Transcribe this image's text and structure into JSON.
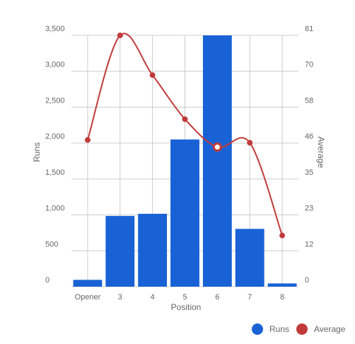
{
  "chart_data": {
    "type": "bar+line",
    "categories": [
      "Opener",
      "3",
      "4",
      "5",
      "6",
      "7",
      "8"
    ],
    "series": [
      {
        "name": "Runs",
        "type": "bar",
        "axis": "left",
        "color": "#1862d6",
        "values": [
          95,
          985,
          1015,
          2050,
          3560,
          805,
          45
        ]
      },
      {
        "name": "Average",
        "type": "line",
        "axis": "right",
        "color": "#c13b3b",
        "values": [
          47.3,
          81.0,
          68.2,
          54.0,
          45.0,
          46.4,
          16.5
        ]
      }
    ],
    "xlabel": "Position",
    "ylabel": "Runs",
    "y2label": "Average",
    "ylim": [
      0,
      3500
    ],
    "y2lim": [
      0,
      81
    ],
    "yticks": [
      "0",
      "500",
      "1,000",
      "1,500",
      "2,000",
      "2,500",
      "3,000",
      "3,500"
    ],
    "y2ticks": [
      "0",
      "12",
      "23",
      "35",
      "46",
      "58",
      "70",
      "81"
    ],
    "grid": true,
    "highlighted_point": "6",
    "legend": {
      "placement": "bottom-right",
      "entries": [
        "Runs",
        "Average"
      ]
    }
  }
}
